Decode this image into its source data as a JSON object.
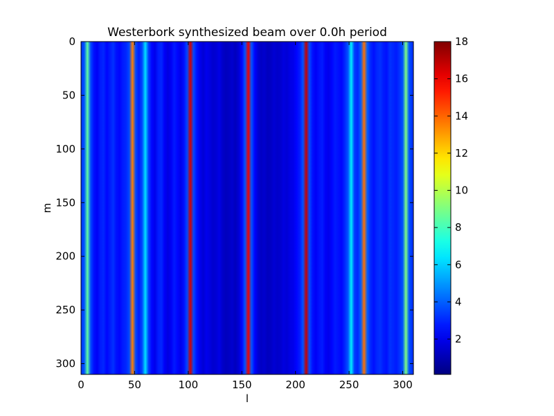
{
  "chart_data": {
    "type": "heatmap",
    "title": "Westerbork synthesized beam over 0.0h period",
    "xlabel": "l",
    "ylabel": "m",
    "colormap": "jet",
    "x_range": [
      0,
      310
    ],
    "y_range": [
      310,
      0
    ],
    "y_inverted": true,
    "x_ticks": [
      "0",
      "50",
      "100",
      "150",
      "200",
      "250",
      "300"
    ],
    "y_ticks": [
      "0",
      "50",
      "100",
      "150",
      "200",
      "250",
      "300"
    ],
    "colorbar": {
      "range": [
        0.1,
        18
      ],
      "ticks": [
        "2",
        "4",
        "6",
        "8",
        "10",
        "12",
        "14",
        "16",
        "18"
      ]
    },
    "column_profile": [
      [
        0,
        3.2
      ],
      [
        3,
        3.8
      ],
      [
        6,
        8.5
      ],
      [
        9,
        3.6
      ],
      [
        12,
        2.6
      ],
      [
        15,
        2.2
      ],
      [
        18,
        2.8
      ],
      [
        21,
        3.0
      ],
      [
        24,
        2.4
      ],
      [
        27,
        2.8
      ],
      [
        30,
        3.2
      ],
      [
        33,
        2.6
      ],
      [
        36,
        2.4
      ],
      [
        39,
        2.8
      ],
      [
        42,
        3.0
      ],
      [
        45,
        3.6
      ],
      [
        48,
        13.5
      ],
      [
        51,
        3.6
      ],
      [
        54,
        2.8
      ],
      [
        57,
        3.6
      ],
      [
        60,
        6.3
      ],
      [
        63,
        3.4
      ],
      [
        66,
        2.4
      ],
      [
        69,
        2.0
      ],
      [
        72,
        2.8
      ],
      [
        75,
        3.0
      ],
      [
        78,
        2.2
      ],
      [
        81,
        1.8
      ],
      [
        84,
        2.2
      ],
      [
        87,
        2.8
      ],
      [
        90,
        2.4
      ],
      [
        93,
        2.0
      ],
      [
        96,
        2.6
      ],
      [
        99,
        3.6
      ],
      [
        102,
        16.5
      ],
      [
        105,
        3.6
      ],
      [
        108,
        2.6
      ],
      [
        111,
        2.0
      ],
      [
        114,
        1.6
      ],
      [
        117,
        2.0
      ],
      [
        120,
        1.8
      ],
      [
        123,
        1.5
      ],
      [
        126,
        1.6
      ],
      [
        129,
        1.9
      ],
      [
        132,
        1.4
      ],
      [
        135,
        1.2
      ],
      [
        138,
        1.3
      ],
      [
        141,
        1.5
      ],
      [
        144,
        1.2
      ],
      [
        147,
        1.6
      ],
      [
        150,
        2.4
      ],
      [
        153,
        3.8
      ],
      [
        156,
        16.0
      ],
      [
        159,
        3.8
      ],
      [
        162,
        2.4
      ],
      [
        165,
        1.6
      ],
      [
        168,
        1.3
      ],
      [
        171,
        1.5
      ],
      [
        174,
        1.2
      ],
      [
        177,
        1.3
      ],
      [
        180,
        1.6
      ],
      [
        183,
        1.4
      ],
      [
        186,
        1.5
      ],
      [
        189,
        1.8
      ],
      [
        192,
        1.6
      ],
      [
        195,
        1.9
      ],
      [
        198,
        2.0
      ],
      [
        201,
        2.4
      ],
      [
        204,
        2.8
      ],
      [
        207,
        3.8
      ],
      [
        210,
        16.8
      ],
      [
        213,
        3.6
      ],
      [
        216,
        2.6
      ],
      [
        219,
        2.2
      ],
      [
        222,
        2.6
      ],
      [
        225,
        2.8
      ],
      [
        228,
        2.2
      ],
      [
        231,
        2.0
      ],
      [
        234,
        2.4
      ],
      [
        237,
        2.8
      ],
      [
        240,
        2.6
      ],
      [
        243,
        2.4
      ],
      [
        246,
        3.0
      ],
      [
        249,
        3.8
      ],
      [
        252,
        6.5
      ],
      [
        255,
        3.4
      ],
      [
        258,
        3.0
      ],
      [
        261,
        4.0
      ],
      [
        264,
        13.8
      ],
      [
        267,
        4.0
      ],
      [
        270,
        3.0
      ],
      [
        273,
        2.6
      ],
      [
        276,
        3.0
      ],
      [
        279,
        3.2
      ],
      [
        282,
        2.8
      ],
      [
        285,
        2.6
      ],
      [
        288,
        3.2
      ],
      [
        291,
        3.0
      ],
      [
        294,
        2.8
      ],
      [
        297,
        3.2
      ],
      [
        300,
        3.8
      ],
      [
        303,
        9.0
      ],
      [
        306,
        3.8
      ],
      [
        309,
        3.2
      ]
    ]
  }
}
